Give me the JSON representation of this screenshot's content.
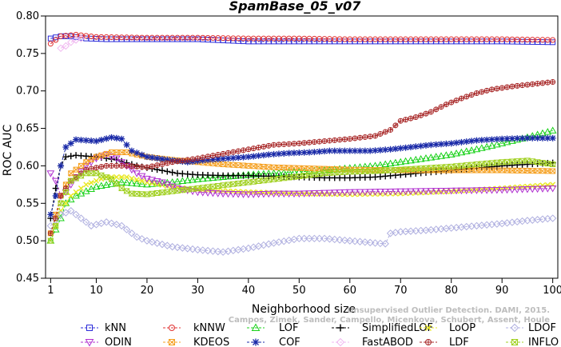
{
  "chart_data": {
    "type": "line",
    "title": "SpamBase_05_v07",
    "xlabel": "Neighborhood size",
    "ylabel": "ROC AUC",
    "xlim": [
      0,
      101
    ],
    "ylim": [
      0.45,
      0.8
    ],
    "xticks": [
      1,
      10,
      20,
      30,
      40,
      50,
      60,
      70,
      80,
      90,
      100
    ],
    "xtick_labels": [
      "1",
      "10",
      "20",
      "30",
      "40",
      "50",
      "60",
      "70",
      "80",
      "90",
      "100"
    ],
    "yticks": [
      0.45,
      0.5,
      0.55,
      0.6,
      0.65,
      0.7,
      0.75,
      0.8
    ],
    "ytick_labels": [
      "0.45",
      "0.50",
      "0.55",
      "0.60",
      "0.65",
      "0.70",
      "0.75",
      "0.80"
    ],
    "grid": false,
    "legend_position": "bottom",
    "credit_lines": [
      "Unsupervised Outlier Detection. DAMI, 2015.",
      "Campos, Zimek, Sander, Campello, Micenkova, Schubert, Assent, Houle"
    ],
    "series": [
      {
        "name": "kNN",
        "color": "#2b2bd9",
        "marker": "square",
        "points": [
          [
            1,
            0.77
          ],
          [
            3,
            0.773
          ],
          [
            5,
            0.773
          ],
          [
            8,
            0.77
          ],
          [
            12,
            0.769
          ],
          [
            20,
            0.769
          ],
          [
            30,
            0.769
          ],
          [
            40,
            0.766
          ],
          [
            50,
            0.766
          ],
          [
            60,
            0.766
          ],
          [
            70,
            0.766
          ],
          [
            80,
            0.766
          ],
          [
            90,
            0.766
          ],
          [
            100,
            0.765
          ]
        ]
      },
      {
        "name": "kNNW",
        "color": "#e03030",
        "marker": "circle",
        "points": [
          [
            1,
            0.763
          ],
          [
            3,
            0.773
          ],
          [
            6,
            0.775
          ],
          [
            10,
            0.772
          ],
          [
            20,
            0.771
          ],
          [
            30,
            0.771
          ],
          [
            40,
            0.77
          ],
          [
            50,
            0.77
          ],
          [
            60,
            0.769
          ],
          [
            70,
            0.769
          ],
          [
            80,
            0.769
          ],
          [
            90,
            0.769
          ],
          [
            100,
            0.768
          ]
        ]
      },
      {
        "name": "LOF",
        "color": "#19d119",
        "marker": "triangle-up",
        "points": [
          [
            1,
            0.5
          ],
          [
            2,
            0.515
          ],
          [
            3,
            0.53
          ],
          [
            4,
            0.55
          ],
          [
            6,
            0.56
          ],
          [
            10,
            0.572
          ],
          [
            15,
            0.578
          ],
          [
            20,
            0.575
          ],
          [
            25,
            0.578
          ],
          [
            30,
            0.582
          ],
          [
            35,
            0.585
          ],
          [
            40,
            0.588
          ],
          [
            45,
            0.59
          ],
          [
            50,
            0.592
          ],
          [
            55,
            0.594
          ],
          [
            60,
            0.597
          ],
          [
            65,
            0.6
          ],
          [
            70,
            0.605
          ],
          [
            75,
            0.61
          ],
          [
            80,
            0.615
          ],
          [
            85,
            0.622
          ],
          [
            90,
            0.63
          ],
          [
            95,
            0.638
          ],
          [
            100,
            0.647
          ]
        ]
      },
      {
        "name": "SimplifiedLOF",
        "color": "#000000",
        "marker": "plus",
        "points": [
          [
            1,
            0.53
          ],
          [
            2,
            0.57
          ],
          [
            3,
            0.6
          ],
          [
            4,
            0.612
          ],
          [
            6,
            0.614
          ],
          [
            10,
            0.612
          ],
          [
            14,
            0.608
          ],
          [
            18,
            0.6
          ],
          [
            22,
            0.595
          ],
          [
            26,
            0.59
          ],
          [
            30,
            0.588
          ],
          [
            35,
            0.587
          ],
          [
            40,
            0.587
          ],
          [
            45,
            0.586
          ],
          [
            50,
            0.585
          ],
          [
            55,
            0.584
          ],
          [
            60,
            0.584
          ],
          [
            65,
            0.585
          ],
          [
            70,
            0.588
          ],
          [
            75,
            0.591
          ],
          [
            80,
            0.594
          ],
          [
            85,
            0.597
          ],
          [
            90,
            0.6
          ],
          [
            95,
            0.602
          ],
          [
            100,
            0.604
          ]
        ]
      },
      {
        "name": "LoOP",
        "color": "#e8e820",
        "marker": "x",
        "points": [
          [
            1,
            0.51
          ],
          [
            2,
            0.52
          ],
          [
            3,
            0.54
          ],
          [
            5,
            0.56
          ],
          [
            8,
            0.575
          ],
          [
            12,
            0.585
          ],
          [
            16,
            0.585
          ],
          [
            20,
            0.578
          ],
          [
            25,
            0.572
          ],
          [
            30,
            0.568
          ],
          [
            40,
            0.565
          ],
          [
            50,
            0.563
          ],
          [
            60,
            0.562
          ],
          [
            70,
            0.563
          ],
          [
            80,
            0.566
          ],
          [
            90,
            0.57
          ],
          [
            100,
            0.575
          ]
        ]
      },
      {
        "name": "LDOF",
        "color": "#b0b0e0",
        "marker": "diamond",
        "points": [
          [
            1,
            0.52
          ],
          [
            3,
            0.535
          ],
          [
            5,
            0.54
          ],
          [
            7,
            0.53
          ],
          [
            9,
            0.52
          ],
          [
            12,
            0.525
          ],
          [
            15,
            0.52
          ],
          [
            18,
            0.505
          ],
          [
            20,
            0.5
          ],
          [
            25,
            0.492
          ],
          [
            30,
            0.488
          ],
          [
            35,
            0.485
          ],
          [
            40,
            0.49
          ],
          [
            45,
            0.497
          ],
          [
            50,
            0.503
          ],
          [
            55,
            0.503
          ],
          [
            60,
            0.5
          ],
          [
            65,
            0.497
          ],
          [
            67,
            0.496
          ],
          [
            68,
            0.51
          ],
          [
            70,
            0.512
          ],
          [
            75,
            0.514
          ],
          [
            80,
            0.517
          ],
          [
            85,
            0.52
          ],
          [
            90,
            0.523
          ],
          [
            95,
            0.527
          ],
          [
            100,
            0.53
          ]
        ]
      },
      {
        "name": "ODIN",
        "color": "#b030d0",
        "marker": "triangle-down",
        "points": [
          [
            1,
            0.59
          ],
          [
            2,
            0.58
          ],
          [
            3,
            0.56
          ],
          [
            4,
            0.565
          ],
          [
            6,
            0.585
          ],
          [
            8,
            0.6
          ],
          [
            10,
            0.61
          ],
          [
            12,
            0.615
          ],
          [
            14,
            0.61
          ],
          [
            16,
            0.6
          ],
          [
            18,
            0.59
          ],
          [
            20,
            0.583
          ],
          [
            23,
            0.578
          ],
          [
            26,
            0.57
          ],
          [
            30,
            0.565
          ],
          [
            35,
            0.563
          ],
          [
            40,
            0.562
          ],
          [
            45,
            0.563
          ],
          [
            50,
            0.563
          ],
          [
            55,
            0.564
          ],
          [
            60,
            0.565
          ],
          [
            70,
            0.566
          ],
          [
            80,
            0.567
          ],
          [
            90,
            0.568
          ],
          [
            100,
            0.57
          ]
        ]
      },
      {
        "name": "KDEOS",
        "color": "#f5a020",
        "marker": "square-cross",
        "points": [
          [
            1,
            0.51
          ],
          [
            3,
            0.56
          ],
          [
            5,
            0.59
          ],
          [
            8,
            0.605
          ],
          [
            10,
            0.612
          ],
          [
            13,
            0.618
          ],
          [
            16,
            0.618
          ],
          [
            20,
            0.612
          ],
          [
            25,
            0.608
          ],
          [
            30,
            0.605
          ],
          [
            35,
            0.602
          ],
          [
            40,
            0.6
          ],
          [
            45,
            0.598
          ],
          [
            50,
            0.597
          ],
          [
            55,
            0.596
          ],
          [
            60,
            0.595
          ],
          [
            70,
            0.594
          ],
          [
            80,
            0.594
          ],
          [
            90,
            0.594
          ],
          [
            100,
            0.593
          ]
        ]
      },
      {
        "name": "COF",
        "color": "#1a2aa8",
        "marker": "asterisk",
        "points": [
          [
            1,
            0.535
          ],
          [
            2,
            0.56
          ],
          [
            3,
            0.6
          ],
          [
            4,
            0.625
          ],
          [
            6,
            0.635
          ],
          [
            10,
            0.633
          ],
          [
            13,
            0.638
          ],
          [
            15,
            0.636
          ],
          [
            17,
            0.62
          ],
          [
            20,
            0.612
          ],
          [
            24,
            0.608
          ],
          [
            28,
            0.605
          ],
          [
            32,
            0.608
          ],
          [
            36,
            0.61
          ],
          [
            40,
            0.612
          ],
          [
            44,
            0.615
          ],
          [
            48,
            0.617
          ],
          [
            52,
            0.618
          ],
          [
            56,
            0.62
          ],
          [
            60,
            0.62
          ],
          [
            64,
            0.62
          ],
          [
            68,
            0.622
          ],
          [
            72,
            0.625
          ],
          [
            76,
            0.628
          ],
          [
            80,
            0.63
          ],
          [
            85,
            0.634
          ],
          [
            90,
            0.636
          ],
          [
            95,
            0.637
          ],
          [
            100,
            0.637
          ]
        ]
      },
      {
        "name": "FastABOD",
        "color": "#f0b8f0",
        "marker": "diamond",
        "points": [
          [
            3,
            0.757
          ],
          [
            4,
            0.76
          ],
          [
            5,
            0.765
          ],
          [
            6,
            0.768
          ],
          [
            7,
            0.77
          ]
        ]
      },
      {
        "name": "LDF",
        "color": "#a82828",
        "marker": "circle-plus",
        "points": [
          [
            1,
            0.51
          ],
          [
            2,
            0.53
          ],
          [
            3,
            0.56
          ],
          [
            5,
            0.58
          ],
          [
            8,
            0.595
          ],
          [
            12,
            0.6
          ],
          [
            16,
            0.6
          ],
          [
            20,
            0.598
          ],
          [
            25,
            0.605
          ],
          [
            30,
            0.61
          ],
          [
            35,
            0.616
          ],
          [
            40,
            0.622
          ],
          [
            45,
            0.628
          ],
          [
            50,
            0.63
          ],
          [
            55,
            0.633
          ],
          [
            60,
            0.636
          ],
          [
            65,
            0.64
          ],
          [
            68,
            0.648
          ],
          [
            70,
            0.66
          ],
          [
            73,
            0.665
          ],
          [
            76,
            0.672
          ],
          [
            79,
            0.682
          ],
          [
            82,
            0.69
          ],
          [
            85,
            0.697
          ],
          [
            88,
            0.702
          ],
          [
            92,
            0.706
          ],
          [
            96,
            0.709
          ],
          [
            100,
            0.712
          ]
        ]
      },
      {
        "name": "INFLO",
        "color": "#a0d020",
        "marker": "hourglass",
        "points": [
          [
            1,
            0.5
          ],
          [
            2,
            0.52
          ],
          [
            3,
            0.55
          ],
          [
            5,
            0.58
          ],
          [
            8,
            0.59
          ],
          [
            10,
            0.59
          ],
          [
            13,
            0.582
          ],
          [
            15,
            0.57
          ],
          [
            17,
            0.563
          ],
          [
            20,
            0.562
          ],
          [
            25,
            0.566
          ],
          [
            30,
            0.57
          ],
          [
            35,
            0.574
          ],
          [
            40,
            0.578
          ],
          [
            45,
            0.582
          ],
          [
            50,
            0.586
          ],
          [
            55,
            0.59
          ],
          [
            60,
            0.592
          ],
          [
            65,
            0.593
          ],
          [
            70,
            0.595
          ],
          [
            75,
            0.597
          ],
          [
            80,
            0.599
          ],
          [
            85,
            0.602
          ],
          [
            90,
            0.605
          ],
          [
            95,
            0.607
          ],
          [
            100,
            0.602
          ]
        ]
      }
    ]
  }
}
